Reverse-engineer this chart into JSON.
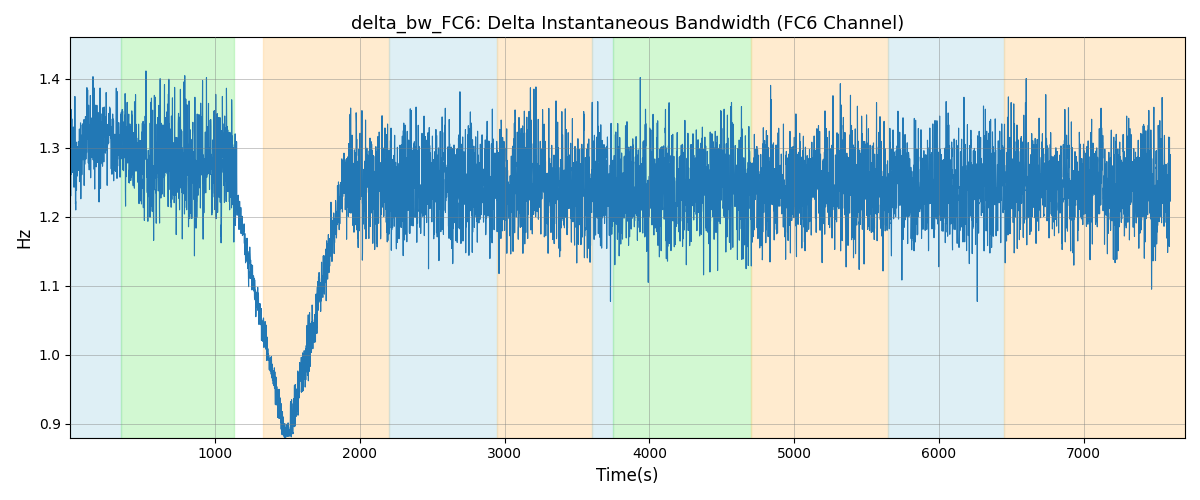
{
  "title": "delta_bw_FC6: Delta Instantaneous Bandwidth (FC6 Channel)",
  "xlabel": "Time(s)",
  "ylabel": "Hz",
  "xlim": [
    0,
    7700
  ],
  "ylim": [
    0.88,
    1.46
  ],
  "line_color": "#2278b5",
  "line_width": 0.8,
  "grid": true,
  "figsize": [
    12,
    5
  ],
  "dpi": 100,
  "colored_bands": [
    {
      "xmin": 0,
      "xmax": 350,
      "color": "#add8e6",
      "alpha": 0.4
    },
    {
      "xmin": 350,
      "xmax": 1130,
      "color": "#90ee90",
      "alpha": 0.4
    },
    {
      "xmin": 1330,
      "xmax": 2200,
      "color": "#ffd9a0",
      "alpha": 0.5
    },
    {
      "xmin": 2200,
      "xmax": 2950,
      "color": "#add8e6",
      "alpha": 0.4
    },
    {
      "xmin": 2950,
      "xmax": 3600,
      "color": "#ffd9a0",
      "alpha": 0.5
    },
    {
      "xmin": 3600,
      "xmax": 3750,
      "color": "#add8e6",
      "alpha": 0.4
    },
    {
      "xmin": 3750,
      "xmax": 4700,
      "color": "#90ee90",
      "alpha": 0.4
    },
    {
      "xmin": 4700,
      "xmax": 5650,
      "color": "#ffd9a0",
      "alpha": 0.5
    },
    {
      "xmin": 5650,
      "xmax": 6450,
      "color": "#add8e6",
      "alpha": 0.4
    },
    {
      "xmin": 6450,
      "xmax": 7700,
      "color": "#ffd9a0",
      "alpha": 0.5
    }
  ],
  "xticks": [
    1000,
    2000,
    3000,
    4000,
    5000,
    6000,
    7000
  ],
  "yticks": [
    0.9,
    1.0,
    1.1,
    1.2,
    1.3,
    1.4
  ]
}
